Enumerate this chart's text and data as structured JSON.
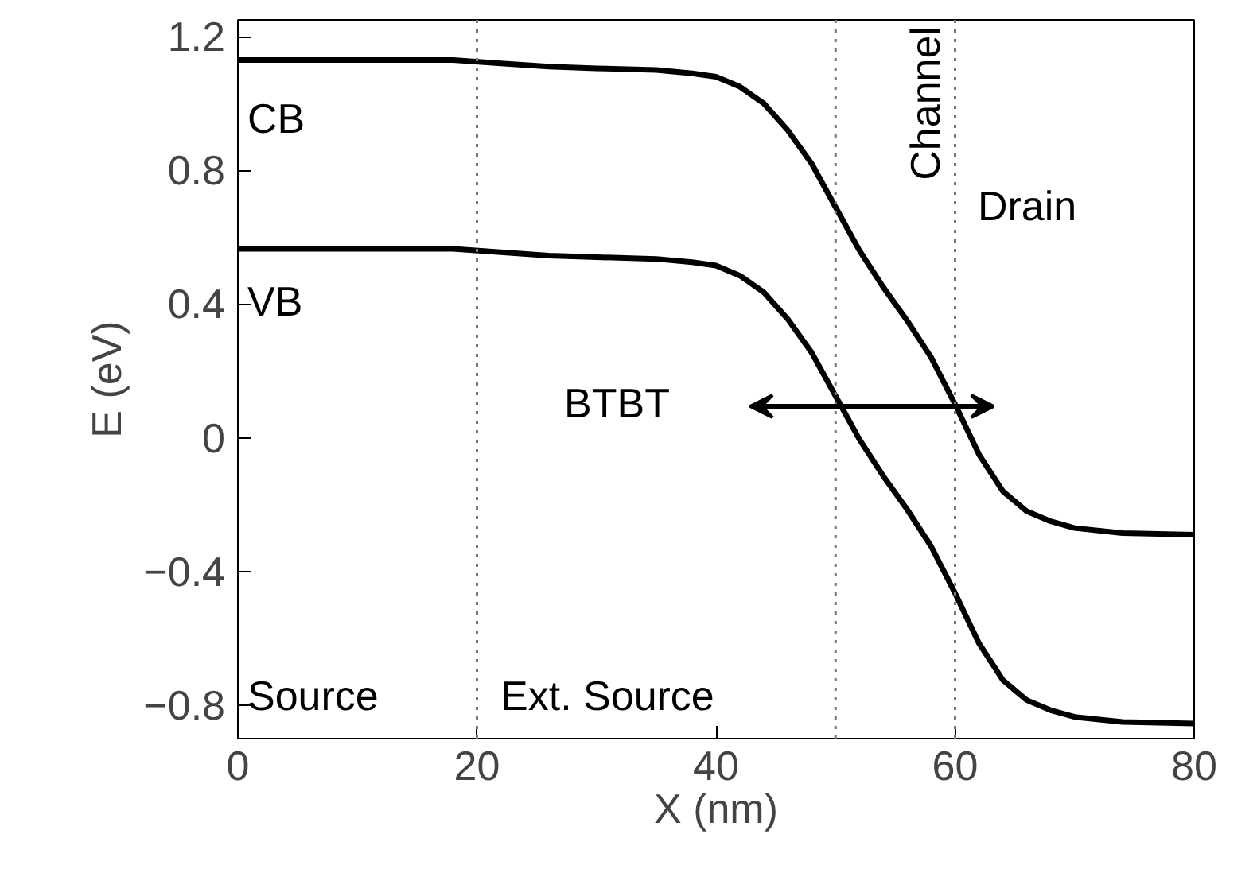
{
  "chart_data": {
    "type": "line",
    "xlabel": "X (nm)",
    "ylabel": "E (eV)",
    "xlim": [
      0,
      80
    ],
    "ylim": [
      -0.9,
      1.25
    ],
    "xticks": [
      0,
      20,
      40,
      60,
      80
    ],
    "yticks": [
      {
        "value": -0.8,
        "label": "−0.8"
      },
      {
        "value": -0.4,
        "label": "−0.4"
      },
      0,
      0.4,
      0.8,
      1.2
    ],
    "grid": false,
    "line_style": "solid",
    "marker": "none",
    "series": [
      {
        "color": "#000000",
        "x": [
          0,
          10,
          18,
          22,
          26,
          30,
          35,
          38,
          40,
          42,
          44,
          46,
          48,
          50,
          52,
          54,
          56,
          58,
          60,
          62,
          64,
          66,
          68,
          70,
          74,
          80
        ],
        "values": [
          1.13,
          1.13,
          1.13,
          1.12,
          1.11,
          1.105,
          1.1,
          1.09,
          1.08,
          1.05,
          1.0,
          0.92,
          0.82,
          0.69,
          0.56,
          0.45,
          0.35,
          0.24,
          0.1,
          -0.05,
          -0.16,
          -0.22,
          -0.25,
          -0.27,
          -0.285,
          -0.29
        ]
      },
      {
        "color": "#000000",
        "x": [
          0,
          10,
          18,
          22,
          26,
          30,
          35,
          38,
          40,
          42,
          44,
          46,
          48,
          50,
          52,
          54,
          56,
          58,
          60,
          62,
          64,
          66,
          68,
          70,
          74,
          80
        ],
        "values": [
          0.565,
          0.565,
          0.565,
          0.555,
          0.545,
          0.54,
          0.535,
          0.525,
          0.515,
          0.485,
          0.435,
          0.355,
          0.255,
          0.125,
          -0.005,
          -0.115,
          -0.215,
          -0.325,
          -0.465,
          -0.615,
          -0.725,
          -0.785,
          -0.815,
          -0.835,
          -0.85,
          -0.855
        ]
      }
    ],
    "ref_lines": [
      {
        "axis": "x",
        "value": 20,
        "line_style": "dotted",
        "color": "#777777"
      },
      {
        "axis": "x",
        "value": 50,
        "line_style": "dotted",
        "color": "#777777"
      },
      {
        "axis": "x",
        "value": 60,
        "label": "Channel",
        "line_style": "dotted",
        "color": "#777777"
      }
    ],
    "annotations": [
      "CB",
      "VB",
      "BTBT",
      "Source",
      "Ext. Source",
      "Drain"
    ]
  }
}
